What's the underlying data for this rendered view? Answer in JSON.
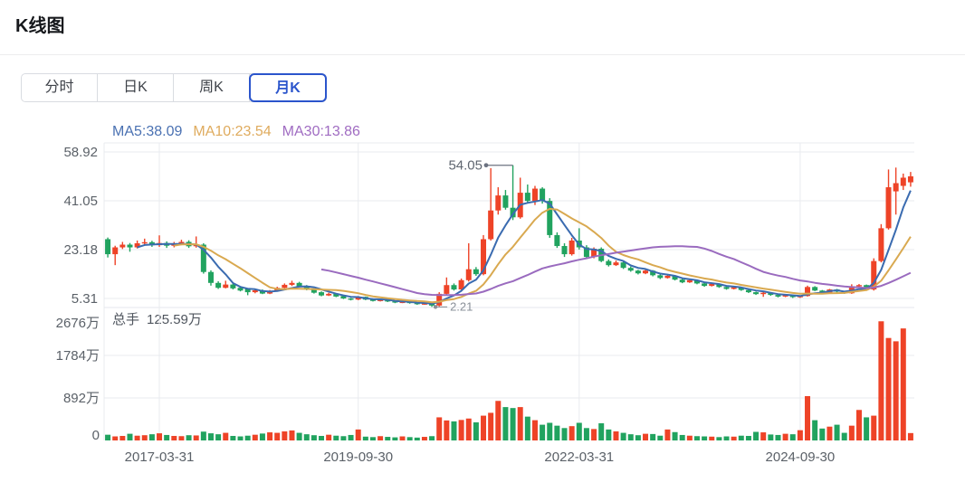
{
  "page": {
    "title": "K线图"
  },
  "tabs": {
    "active_index": 3,
    "items": [
      {
        "label": "分时"
      },
      {
        "label": "日K"
      },
      {
        "label": "周K"
      },
      {
        "label": "月K"
      }
    ]
  },
  "legend": {
    "ma5": {
      "text": "MA5:38.09",
      "color": "#4a71b2"
    },
    "ma10": {
      "text": "MA10:23.54",
      "color": "#dfab5e"
    },
    "ma30": {
      "text": "MA30:13.86",
      "color": "#a06cc2"
    }
  },
  "volume_header": {
    "label": "总手",
    "value": "125.59万"
  },
  "colors": {
    "up": "#ee4327",
    "down": "#21a35f",
    "ma5": "#3a6bb0",
    "ma10": "#d9a950",
    "ma30": "#9a6bbf",
    "grid": "#e9ebef",
    "axis_text": "#5b6168",
    "annotation": "#5f6670",
    "active_tab": "#2b55cc"
  },
  "chart_data": {
    "type": "candlestick",
    "title": "K线图",
    "legend_position": "top",
    "grid": true,
    "price_axis": {
      "ticks": [
        58.92,
        41.05,
        23.18,
        5.31
      ]
    },
    "volume_axis": {
      "ticks": [
        "2676万",
        "1784万",
        "892万",
        "0"
      ],
      "tick_values_wan": [
        2676,
        1784,
        892,
        0
      ]
    },
    "x_axis": {
      "labels": [
        {
          "index": 7,
          "text": "2017-03-31"
        },
        {
          "index": 34,
          "text": "2019-09-30"
        },
        {
          "index": 64,
          "text": "2022-03-31"
        },
        {
          "index": 94,
          "text": "2024-09-30"
        }
      ]
    },
    "ma_lines": [
      {
        "name": "MA5",
        "period": 5,
        "value": 38.09,
        "color": "#3a6bb0"
      },
      {
        "name": "MA10",
        "period": 10,
        "value": 23.54,
        "color": "#d9a950"
      },
      {
        "name": "MA30",
        "period": 30,
        "value": 13.86,
        "color": "#9a6bbf"
      }
    ],
    "annotations": {
      "max": {
        "index": 55,
        "value": 54.05,
        "label": "54.05"
      },
      "min": {
        "index": 44,
        "value": 2.21,
        "label": "2.21"
      }
    },
    "candles": [
      [
        27.0,
        27.6,
        20.3,
        21.5
      ],
      [
        21.5,
        24.6,
        17.5,
        24.0
      ],
      [
        24.0,
        26.0,
        23.4,
        25.0
      ],
      [
        25.0,
        25.6,
        22.4,
        24.0
      ],
      [
        24.0,
        26.5,
        23.6,
        25.5
      ],
      [
        25.5,
        27.2,
        24.8,
        25.9
      ],
      [
        25.9,
        26.4,
        24.2,
        24.8
      ],
      [
        24.8,
        28.4,
        24.2,
        25.6
      ],
      [
        25.6,
        26.2,
        23.8,
        24.6
      ],
      [
        24.6,
        26.0,
        24.0,
        25.4
      ],
      [
        25.4,
        26.8,
        24.8,
        26.0
      ],
      [
        26.0,
        26.6,
        23.8,
        24.4
      ],
      [
        24.4,
        28.0,
        23.9,
        25.0
      ],
      [
        25.0,
        25.5,
        14.4,
        15.0
      ],
      [
        15.0,
        15.6,
        10.0,
        11.0
      ],
      [
        11.0,
        11.6,
        8.8,
        9.2
      ],
      [
        9.2,
        11.8,
        9.0,
        10.4
      ],
      [
        10.4,
        10.8,
        8.6,
        9.0
      ],
      [
        9.2,
        9.8,
        7.9,
        8.2
      ],
      [
        8.8,
        9.0,
        6.5,
        7.6
      ],
      [
        7.6,
        8.8,
        7.2,
        8.3
      ],
      [
        8.3,
        8.6,
        6.9,
        7.1
      ],
      [
        7.1,
        8.4,
        6.9,
        8.0
      ],
      [
        8.0,
        9.6,
        7.8,
        9.2
      ],
      [
        9.2,
        10.8,
        9.0,
        10.3
      ],
      [
        10.3,
        11.8,
        9.9,
        11.0
      ],
      [
        11.0,
        11.4,
        9.4,
        9.7
      ],
      [
        9.9,
        10.2,
        8.3,
        8.6
      ],
      [
        8.8,
        9.0,
        7.1,
        7.4
      ],
      [
        7.6,
        7.9,
        6.1,
        6.4
      ],
      [
        6.4,
        7.4,
        6.2,
        7.0
      ],
      [
        7.0,
        7.2,
        5.8,
        6.0
      ],
      [
        6.2,
        6.4,
        5.1,
        5.3
      ],
      [
        5.3,
        5.5,
        4.6,
        4.9
      ],
      [
        4.9,
        6.2,
        4.7,
        5.9
      ],
      [
        5.9,
        6.0,
        4.7,
        4.9
      ],
      [
        5.0,
        5.2,
        4.2,
        4.4
      ],
      [
        4.4,
        5.0,
        4.2,
        4.8
      ],
      [
        4.8,
        4.9,
        4.0,
        4.2
      ],
      [
        4.3,
        4.5,
        3.6,
        3.8
      ],
      [
        3.8,
        4.3,
        3.6,
        4.1
      ],
      [
        4.1,
        4.2,
        3.4,
        3.6
      ],
      [
        3.7,
        3.8,
        3.0,
        3.2
      ],
      [
        3.2,
        3.7,
        3.0,
        3.5
      ],
      [
        3.4,
        3.5,
        2.21,
        2.7
      ],
      [
        2.7,
        7.6,
        2.4,
        7.0
      ],
      [
        7.0,
        13.0,
        6.8,
        10.2
      ],
      [
        10.2,
        10.8,
        8.2,
        8.6
      ],
      [
        8.6,
        12.6,
        8.4,
        12.0
      ],
      [
        12.0,
        25.5,
        11.5,
        16.0
      ],
      [
        16.0,
        16.8,
        13.6,
        14.2
      ],
      [
        14.2,
        28.5,
        13.8,
        27.0
      ],
      [
        27.0,
        53.0,
        26.5,
        37.5
      ],
      [
        37.5,
        46.0,
        36.0,
        43.0
      ],
      [
        43.0,
        45.0,
        37.8,
        38.5
      ],
      [
        38.5,
        54.05,
        34.0,
        35.0
      ],
      [
        35.0,
        49.5,
        34.5,
        44.0
      ],
      [
        44.0,
        47.0,
        40.2,
        41.0
      ],
      [
        41.0,
        46.5,
        39.5,
        45.5
      ],
      [
        45.5,
        46.0,
        40.0,
        41.0
      ],
      [
        41.0,
        42.0,
        27.5,
        28.5
      ],
      [
        28.5,
        29.5,
        23.8,
        24.5
      ],
      [
        24.5,
        25.5,
        20.5,
        21.5
      ],
      [
        21.5,
        27.5,
        21.0,
        26.5
      ],
      [
        26.5,
        31.0,
        23.2,
        24.0
      ],
      [
        24.0,
        24.8,
        20.0,
        20.5
      ],
      [
        20.5,
        24.0,
        20.0,
        23.5
      ],
      [
        23.5,
        24.0,
        18.6,
        19.0
      ],
      [
        19.0,
        19.6,
        17.0,
        17.5
      ],
      [
        17.5,
        19.2,
        17.2,
        18.5
      ],
      [
        18.5,
        18.8,
        16.1,
        16.5
      ],
      [
        16.5,
        17.0,
        15.1,
        15.5
      ],
      [
        15.5,
        15.8,
        14.1,
        14.5
      ],
      [
        14.5,
        15.9,
        14.2,
        15.5
      ],
      [
        15.5,
        15.7,
        13.4,
        13.8
      ],
      [
        13.8,
        14.1,
        12.4,
        12.8
      ],
      [
        12.8,
        14.0,
        12.6,
        13.6
      ],
      [
        13.6,
        13.8,
        11.9,
        12.2
      ],
      [
        12.2,
        12.5,
        10.9,
        11.2
      ],
      [
        11.2,
        12.3,
        11.0,
        12.0
      ],
      [
        12.0,
        12.2,
        10.5,
        10.8
      ],
      [
        10.8,
        11.0,
        9.6,
        9.9
      ],
      [
        9.9,
        10.9,
        9.7,
        10.6
      ],
      [
        10.6,
        10.8,
        9.2,
        9.5
      ],
      [
        9.5,
        9.7,
        8.5,
        8.8
      ],
      [
        8.8,
        9.7,
        8.6,
        9.4
      ],
      [
        9.4,
        9.6,
        8.1,
        8.4
      ],
      [
        8.4,
        8.6,
        7.3,
        7.6
      ],
      [
        7.6,
        7.8,
        6.6,
        6.9
      ],
      [
        6.9,
        7.7,
        5.9,
        7.4
      ],
      [
        7.4,
        7.6,
        6.3,
        6.6
      ],
      [
        6.6,
        6.8,
        5.7,
        6.0
      ],
      [
        6.0,
        6.8,
        5.8,
        6.5
      ],
      [
        6.5,
        6.7,
        5.5,
        5.8
      ],
      [
        5.8,
        6.4,
        5.5,
        6.2
      ],
      [
        6.2,
        10.0,
        6.0,
        9.5
      ],
      [
        9.5,
        9.8,
        8.0,
        8.2
      ],
      [
        8.2,
        8.4,
        7.1,
        7.4
      ],
      [
        7.4,
        8.8,
        7.2,
        8.6
      ],
      [
        8.6,
        8.8,
        7.5,
        7.8
      ],
      [
        7.8,
        8.0,
        7.0,
        7.2
      ],
      [
        7.2,
        10.5,
        7.0,
        9.8
      ],
      [
        9.8,
        10.6,
        9.4,
        10.2
      ],
      [
        10.2,
        10.4,
        8.5,
        8.8
      ],
      [
        8.6,
        20.0,
        8.2,
        19.0
      ],
      [
        19.0,
        32.5,
        18.5,
        31.0
      ],
      [
        31.0,
        52.5,
        30.5,
        46.0
      ],
      [
        44.5,
        53.2,
        36.0,
        47.5
      ],
      [
        46.5,
        51.0,
        45.0,
        49.5
      ],
      [
        47.8,
        51.6,
        46.2,
        50.0
      ]
    ],
    "volumes_wan": [
      120,
      85,
      95,
      140,
      100,
      110,
      130,
      150,
      115,
      95,
      90,
      110,
      105,
      185,
      150,
      130,
      160,
      95,
      85,
      100,
      120,
      145,
      170,
      160,
      190,
      210,
      160,
      130,
      110,
      95,
      120,
      100,
      90,
      115,
      230,
      80,
      70,
      90,
      75,
      65,
      85,
      70,
      60,
      75,
      90,
      485,
      420,
      400,
      430,
      460,
      380,
      520,
      580,
      830,
      700,
      680,
      700,
      500,
      425,
      330,
      370,
      310,
      260,
      300,
      370,
      260,
      240,
      360,
      230,
      190,
      160,
      130,
      110,
      140,
      135,
      100,
      230,
      175,
      115,
      100,
      90,
      85,
      80,
      70,
      85,
      80,
      100,
      95,
      180,
      170,
      125,
      115,
      140,
      130,
      215,
      930,
      425,
      250,
      290,
      330,
      160,
      310,
      640,
      485,
      520,
      2500,
      2150,
      2080,
      2350,
      155
    ]
  }
}
